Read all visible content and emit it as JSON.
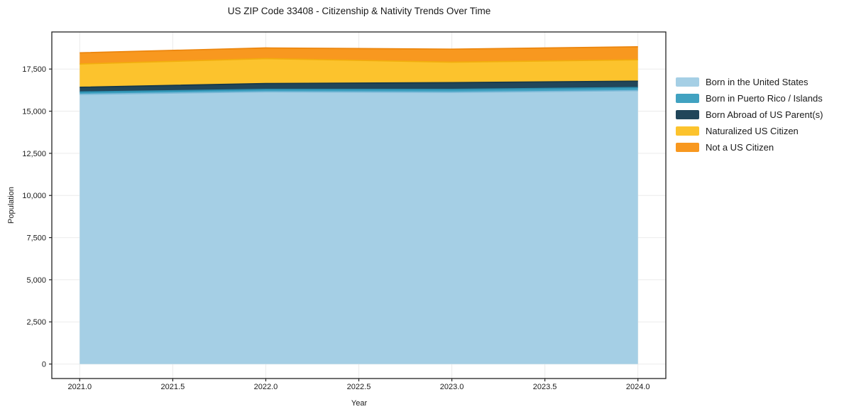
{
  "chart_data": {
    "type": "area",
    "stacked": true,
    "title": "US ZIP Code 33408 - Citizenship & Nativity Trends Over Time",
    "xlabel": "Year",
    "ylabel": "Population",
    "x": [
      2021,
      2022,
      2023,
      2024
    ],
    "series": [
      {
        "name": "Born in the United States",
        "fill": "#a5cfe5",
        "edge": "#7cb9d8",
        "values": [
          16000,
          16150,
          16120,
          16220
        ]
      },
      {
        "name": "Born in Puerto Rico / Islands",
        "fill": "#41a2c1",
        "edge": "#2b8fb0",
        "values": [
          140,
          140,
          170,
          180
        ]
      },
      {
        "name": "Born Abroad of US Parent(s)",
        "fill": "#21465a",
        "edge": "#16384a",
        "values": [
          280,
          350,
          400,
          380
        ]
      },
      {
        "name": "Naturalized US Citizen",
        "fill": "#fcc32d",
        "edge": "#f2ad0d",
        "values": [
          1380,
          1480,
          1220,
          1270
        ]
      },
      {
        "name": "Not a US Citizen",
        "fill": "#f8981f",
        "edge": "#ec860e",
        "values": [
          660,
          630,
          770,
          770
        ]
      }
    ],
    "totals": [
      18460,
      18750,
      18680,
      18820
    ],
    "x_ticks": [
      2021.0,
      2021.5,
      2022.0,
      2022.5,
      2023.0,
      2023.5,
      2024.0
    ],
    "x_tick_labels": [
      "2021.0",
      "2021.5",
      "2022.0",
      "2022.5",
      "2023.0",
      "2023.5",
      "2024.0"
    ],
    "y_ticks": [
      0,
      2500,
      5000,
      7500,
      10000,
      12500,
      15000,
      17500
    ],
    "y_tick_labels": [
      "0",
      "2,500",
      "5,000",
      "7,500",
      "10,000",
      "12,500",
      "15,000",
      "17,500"
    ],
    "xlim": [
      2020.85,
      2024.15
    ],
    "ylim": [
      -860,
      19700
    ],
    "grid": true,
    "grid_color": "#ebebeb",
    "spine_color": "#222222",
    "legend_position": "right"
  }
}
